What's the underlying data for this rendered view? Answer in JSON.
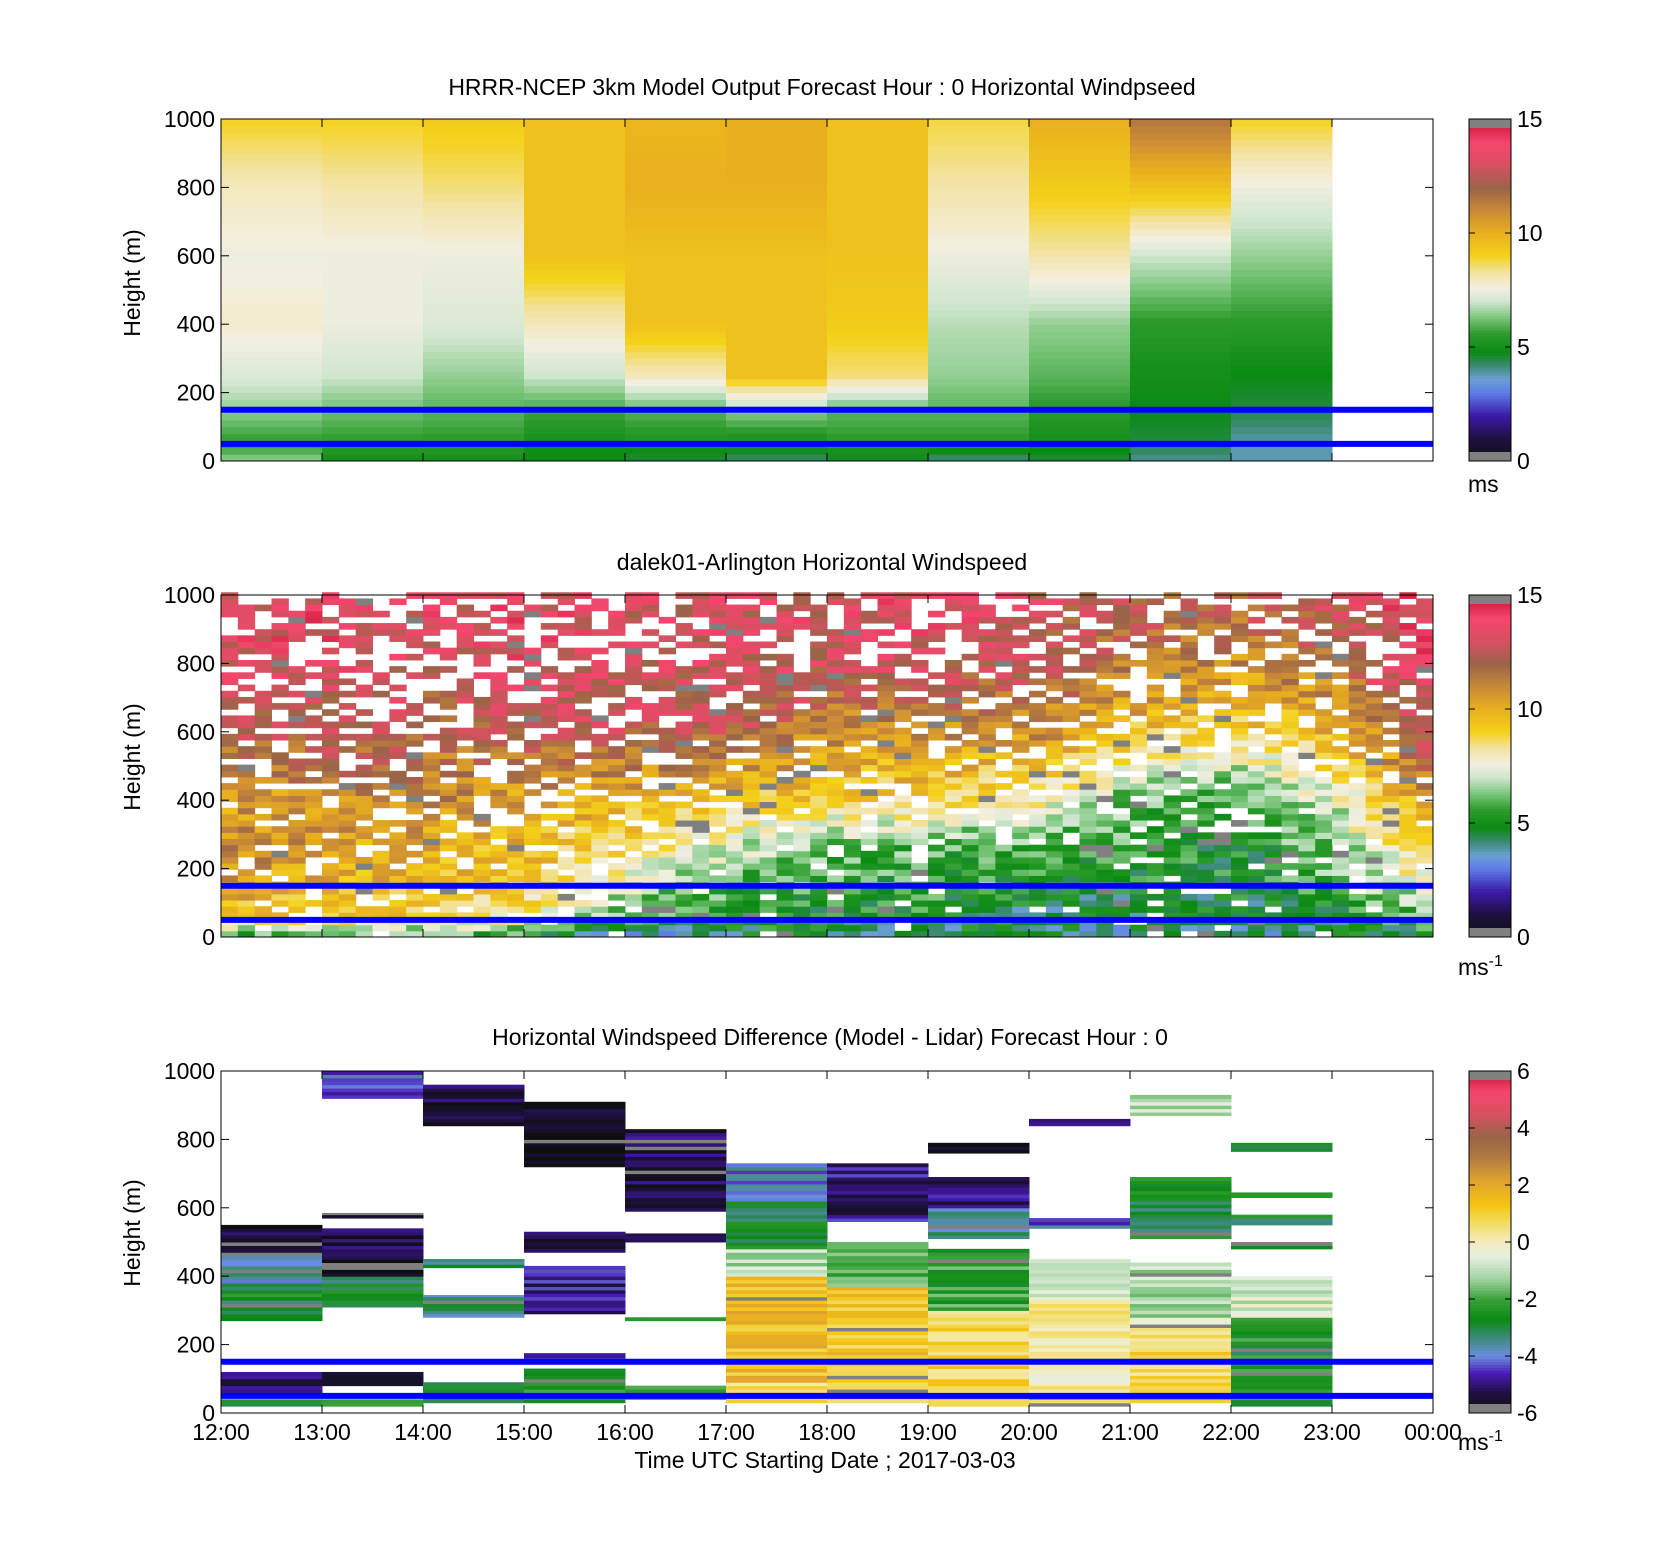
{
  "figure": {
    "xlabel": "Time UTC  Starting Date ; 2017-03-03",
    "x_tick_labels": [
      "12:00",
      "13:00",
      "14:00",
      "15:00",
      "16:00",
      "17:00",
      "18:00",
      "19:00",
      "20:00",
      "21:00",
      "22:00",
      "23:00",
      "00:00"
    ]
  },
  "chart_data": [
    {
      "type": "heatmap",
      "title": "HRRR-NCEP 3km Model Output   Forecast Hour : 0 Horizontal Windpseed",
      "ylabel": "Height (m)",
      "ylim": [
        0,
        1000
      ],
      "y_ticks": [
        0,
        200,
        400,
        600,
        800,
        1000
      ],
      "x_hours": [
        12,
        13,
        14,
        15,
        16,
        17,
        18,
        19,
        20,
        21,
        22,
        23,
        24
      ],
      "colorbar": {
        "min": 0,
        "max": 15,
        "ticks": [
          0,
          5,
          10,
          15
        ],
        "unit": "ms",
        "unit_sup": ""
      },
      "reference_lines_m": [
        150,
        50
      ],
      "heights_m": [
        0,
        50,
        150,
        250,
        400,
        600,
        800,
        1000
      ],
      "values": [
        [
          6.5,
          5.5,
          6.5,
          7.2,
          7.8,
          7.5,
          8.0,
          9.0
        ],
        [
          5.0,
          5.5,
          6.2,
          7.0,
          7.5,
          7.5,
          8.2,
          9.0
        ],
        [
          5.0,
          5.5,
          6.0,
          6.5,
          7.2,
          7.5,
          8.5,
          9.2
        ],
        [
          4.8,
          5.0,
          5.8,
          7.0,
          8.0,
          9.5,
          9.5,
          9.5
        ],
        [
          4.5,
          5.2,
          6.0,
          8.0,
          9.5,
          9.5,
          10.0,
          9.8
        ],
        [
          4.2,
          5.0,
          6.5,
          9.5,
          9.5,
          9.5,
          10.0,
          10.0
        ],
        [
          4.5,
          5.5,
          6.0,
          8.5,
          9.2,
          9.5,
          9.5,
          9.5
        ],
        [
          4.0,
          5.5,
          6.0,
          6.5,
          6.8,
          7.5,
          8.2,
          8.8
        ],
        [
          4.5,
          5.0,
          5.5,
          6.0,
          6.5,
          8.2,
          9.2,
          10.0
        ],
        [
          4.0,
          4.5,
          4.8,
          5.0,
          5.5,
          7.0,
          9.5,
          11.5
        ],
        [
          3.8,
          3.8,
          4.5,
          4.8,
          5.5,
          6.5,
          7.5,
          9.0
        ]
      ]
    },
    {
      "type": "heatmap",
      "title": "dalek01-Arlington  Horizontal Windspeed",
      "ylabel": "Height (m)",
      "ylim": [
        0,
        1000
      ],
      "y_ticks": [
        0,
        200,
        400,
        600,
        800,
        1000
      ],
      "x_hours": [
        12,
        13,
        14,
        15,
        16,
        17,
        18,
        19,
        20,
        21,
        22,
        23,
        24
      ],
      "colorbar": {
        "min": 0,
        "max": 15,
        "ticks": [
          0,
          5,
          10,
          15
        ],
        "unit": "ms",
        "unit_sup": "-1"
      },
      "reference_lines_m": [
        150,
        50
      ],
      "profile_hours": [
        12,
        13,
        14,
        15,
        16,
        17,
        18,
        19,
        20,
        21,
        22,
        23,
        24
      ],
      "profile_heights_m": [
        0,
        50,
        150,
        250,
        400,
        600,
        800,
        1000
      ],
      "profiles": [
        [
          6.0,
          9.0,
          10.5,
          11.0,
          10.5,
          12.5,
          13.0,
          13.5
        ],
        [
          6.0,
          9.0,
          10.0,
          10.5,
          11.0,
          12.5,
          13.5,
          13.5
        ],
        [
          6.0,
          9.0,
          9.5,
          10.0,
          11.0,
          12.0,
          13.0,
          13.5
        ],
        [
          5.5,
          8.0,
          9.0,
          9.5,
          10.5,
          12.5,
          13.5,
          13.5
        ],
        [
          3.5,
          6.0,
          7.0,
          8.5,
          10.0,
          12.5,
          13.0,
          13.0
        ],
        [
          4.5,
          5.5,
          6.0,
          7.0,
          9.5,
          12.5,
          13.0,
          13.0
        ],
        [
          4.5,
          5.0,
          5.5,
          6.0,
          9.0,
          11.0,
          13.0,
          13.0
        ],
        [
          4.5,
          5.0,
          5.5,
          5.8,
          9.0,
          11.0,
          13.0,
          13.5
        ],
        [
          4.5,
          4.5,
          5.0,
          5.5,
          8.0,
          11.0,
          12.5,
          13.0
        ],
        [
          4.0,
          4.5,
          5.0,
          5.5,
          6.0,
          9.5,
          11.5,
          12.5
        ],
        [
          4.0,
          4.5,
          5.0,
          5.0,
          5.5,
          9.0,
          11.0,
          12.5
        ],
        [
          4.5,
          5.0,
          6.0,
          6.5,
          7.5,
          10.0,
          12.0,
          13.0
        ],
        [
          5.0,
          6.0,
          8.0,
          9.5,
          11.0,
          13.5,
          14.0,
          14.0
        ]
      ],
      "columns_per_hour": 6,
      "row_height_m": 18
    },
    {
      "type": "heatmap",
      "title": "Horizontal Windspeed Difference (Model - Lidar) Forecast Hour : 0",
      "ylabel": "Height (m)",
      "ylim": [
        0,
        1000
      ],
      "y_ticks": [
        0,
        200,
        400,
        600,
        800,
        1000
      ],
      "x_hours": [
        12,
        13,
        14,
        15,
        16,
        17,
        18,
        19,
        20,
        21,
        22,
        23,
        24
      ],
      "colorbar": {
        "min": -6,
        "max": 6,
        "ticks": [
          -6,
          -4,
          -2,
          0,
          2,
          4,
          6
        ],
        "unit": "ms",
        "unit_sup": "-1"
      },
      "reference_lines_m": [
        150,
        50
      ],
      "segments": [
        {
          "x0": 12,
          "x1": 13,
          "y0": 20,
          "y1": 40,
          "v": -2.8
        },
        {
          "x0": 12,
          "x1": 13,
          "y0": 60,
          "y1": 120,
          "v": -5.0
        },
        {
          "x0": 12,
          "x1": 13,
          "y0": 270,
          "y1": 380,
          "v": -2.8
        },
        {
          "x0": 12,
          "x1": 13,
          "y0": 380,
          "y1": 460,
          "v": -3.8
        },
        {
          "x0": 12,
          "x1": 13,
          "y0": 460,
          "y1": 550,
          "v": -5.5
        },
        {
          "x0": 13,
          "x1": 14,
          "y0": 20,
          "y1": 40,
          "v": -2.5
        },
        {
          "x0": 13,
          "x1": 14,
          "y0": 80,
          "y1": 120,
          "v": -6.0
        },
        {
          "x0": 13,
          "x1": 14,
          "y0": 310,
          "y1": 400,
          "v": -2.8
        },
        {
          "x0": 13,
          "x1": 14,
          "y0": 400,
          "y1": 540,
          "v": -5.5
        },
        {
          "x0": 13,
          "x1": 14,
          "y0": 570,
          "y1": 585,
          "v": -5.8
        },
        {
          "x0": 13,
          "x1": 14,
          "y0": 920,
          "y1": 1000,
          "v": -4.2
        },
        {
          "x0": 14,
          "x1": 15,
          "y0": 30,
          "y1": 90,
          "v": -2.8
        },
        {
          "x0": 14,
          "x1": 15,
          "y0": 280,
          "y1": 345,
          "v": -3.5
        },
        {
          "x0": 14,
          "x1": 15,
          "y0": 425,
          "y1": 450,
          "v": -3.0
        },
        {
          "x0": 14,
          "x1": 15,
          "y0": 840,
          "y1": 960,
          "v": -5.5
        },
        {
          "x0": 15,
          "x1": 16,
          "y0": 30,
          "y1": 130,
          "v": -2.2
        },
        {
          "x0": 15,
          "x1": 16,
          "y0": 160,
          "y1": 175,
          "v": -5.0
        },
        {
          "x0": 15,
          "x1": 16,
          "y0": 290,
          "y1": 430,
          "v": -4.8
        },
        {
          "x0": 15,
          "x1": 16,
          "y0": 470,
          "y1": 530,
          "v": -5.5
        },
        {
          "x0": 15,
          "x1": 16,
          "y0": 720,
          "y1": 910,
          "v": -5.8
        },
        {
          "x0": 16,
          "x1": 17,
          "y0": 40,
          "y1": 80,
          "v": -2.5
        },
        {
          "x0": 16,
          "x1": 17,
          "y0": 270,
          "y1": 280,
          "v": -2.5
        },
        {
          "x0": 16,
          "x1": 17,
          "y0": 500,
          "y1": 525,
          "v": -5.0
        },
        {
          "x0": 16,
          "x1": 17,
          "y0": 590,
          "y1": 830,
          "v": -5.3
        },
        {
          "x0": 17,
          "x1": 18,
          "y0": 30,
          "y1": 90,
          "v": 0.6
        },
        {
          "x0": 17,
          "x1": 18,
          "y0": 90,
          "y1": 400,
          "v": 1.5
        },
        {
          "x0": 17,
          "x1": 18,
          "y0": 400,
          "y1": 480,
          "v": -1.0
        },
        {
          "x0": 17,
          "x1": 18,
          "y0": 480,
          "y1": 620,
          "v": -2.8
        },
        {
          "x0": 17,
          "x1": 18,
          "y0": 620,
          "y1": 730,
          "v": -3.8
        },
        {
          "x0": 18,
          "x1": 19,
          "y0": 30,
          "y1": 370,
          "v": 1.2
        },
        {
          "x0": 18,
          "x1": 19,
          "y0": 370,
          "y1": 500,
          "v": -2.0
        },
        {
          "x0": 18,
          "x1": 19,
          "y0": 560,
          "y1": 730,
          "v": -5.0
        },
        {
          "x0": 19,
          "x1": 20,
          "y0": 20,
          "y1": 300,
          "v": 0.8
        },
        {
          "x0": 19,
          "x1": 20,
          "y0": 300,
          "y1": 480,
          "v": -2.2
        },
        {
          "x0": 19,
          "x1": 20,
          "y0": 510,
          "y1": 600,
          "v": -3.6
        },
        {
          "x0": 19,
          "x1": 20,
          "y0": 600,
          "y1": 690,
          "v": -5.0
        },
        {
          "x0": 19,
          "x1": 20,
          "y0": 760,
          "y1": 790,
          "v": -5.8
        },
        {
          "x0": 20,
          "x1": 21,
          "y0": 20,
          "y1": 330,
          "v": 0.2
        },
        {
          "x0": 20,
          "x1": 21,
          "y0": 330,
          "y1": 450,
          "v": -0.8
        },
        {
          "x0": 20,
          "x1": 21,
          "y0": 540,
          "y1": 570,
          "v": -4.2
        },
        {
          "x0": 20,
          "x1": 21,
          "y0": 840,
          "y1": 860,
          "v": -4.5
        },
        {
          "x0": 21,
          "x1": 22,
          "y0": 30,
          "y1": 260,
          "v": 0.8
        },
        {
          "x0": 21,
          "x1": 22,
          "y0": 260,
          "y1": 440,
          "v": -1.0
        },
        {
          "x0": 21,
          "x1": 22,
          "y0": 510,
          "y1": 690,
          "v": -2.8
        },
        {
          "x0": 21,
          "x1": 22,
          "y0": 870,
          "y1": 930,
          "v": -0.8
        },
        {
          "x0": 22,
          "x1": 23,
          "y0": 20,
          "y1": 280,
          "v": -2.5
        },
        {
          "x0": 22,
          "x1": 23,
          "y0": 280,
          "y1": 400,
          "v": -0.7
        },
        {
          "x0": 22,
          "x1": 23,
          "y0": 480,
          "y1": 500,
          "v": -2.8
        },
        {
          "x0": 22,
          "x1": 23,
          "y0": 550,
          "y1": 580,
          "v": -2.8
        },
        {
          "x0": 22,
          "x1": 23,
          "y0": 630,
          "y1": 645,
          "v": -2.5
        },
        {
          "x0": 22,
          "x1": 23,
          "y0": 765,
          "y1": 790,
          "v": -2.8
        }
      ]
    }
  ],
  "colormaps": {
    "windspeed": [
      [
        0.0,
        "#0f0f12"
      ],
      [
        1.0,
        "#1e1040"
      ],
      [
        2.0,
        "#3b1aa8"
      ],
      [
        3.0,
        "#5e7ce8"
      ],
      [
        3.6,
        "#6a9fd4"
      ],
      [
        4.2,
        "#3a8a72"
      ],
      [
        4.8,
        "#0b8a12"
      ],
      [
        5.6,
        "#2d9c2d"
      ],
      [
        6.3,
        "#7cc67c"
      ],
      [
        7.0,
        "#cfe6cf"
      ],
      [
        7.6,
        "#f3efe0"
      ],
      [
        8.3,
        "#f3e2a0"
      ],
      [
        9.0,
        "#f4d21a"
      ],
      [
        10.0,
        "#e9b01e"
      ],
      [
        11.0,
        "#c98838"
      ],
      [
        12.0,
        "#9a6448"
      ],
      [
        13.0,
        "#d85060"
      ],
      [
        14.0,
        "#f5456e"
      ],
      [
        15.0,
        "#c5102f"
      ]
    ],
    "difference": [
      [
        -6.0,
        "#0f0f12"
      ],
      [
        -5.3,
        "#1e1040"
      ],
      [
        -4.6,
        "#4a1ab8"
      ],
      [
        -4.0,
        "#6a8ee0"
      ],
      [
        -3.3,
        "#3a8a72"
      ],
      [
        -2.7,
        "#0b8a12"
      ],
      [
        -2.0,
        "#3aa13a"
      ],
      [
        -1.3,
        "#9fd39f"
      ],
      [
        -0.5,
        "#e6efe0"
      ],
      [
        0.0,
        "#f4ecc0"
      ],
      [
        0.7,
        "#f3dc60"
      ],
      [
        1.3,
        "#f4c510"
      ],
      [
        2.2,
        "#e0a030"
      ],
      [
        3.0,
        "#b07a40"
      ],
      [
        3.7,
        "#9a6448"
      ],
      [
        4.5,
        "#d85060"
      ],
      [
        5.3,
        "#f5456e"
      ],
      [
        6.0,
        "#c5102f"
      ]
    ],
    "top_gray": "#808080",
    "bottom_gray": "#808080"
  }
}
